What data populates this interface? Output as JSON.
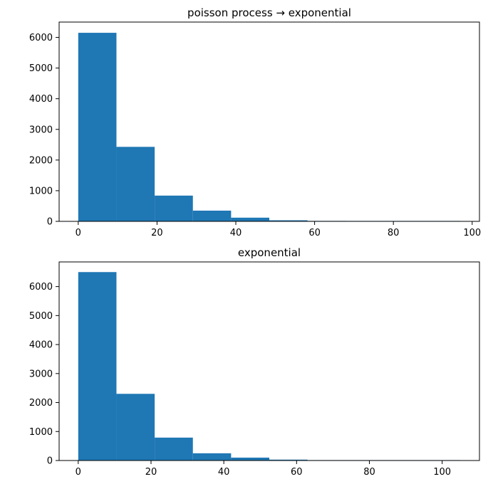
{
  "chart_data": [
    {
      "type": "bar",
      "title": "poisson process → exponential",
      "xlabel": "",
      "ylabel": "",
      "bin_edges": [
        0,
        9.7,
        19.4,
        29.1,
        38.8,
        48.5,
        58.2,
        67.9,
        77.6,
        87.3,
        97
      ],
      "values": [
        6150,
        2430,
        840,
        350,
        120,
        35,
        15,
        5,
        3,
        2
      ],
      "color": "#1f77b4",
      "xlim": [
        -4.85,
        101.85
      ],
      "ylim": [
        0,
        6500
      ],
      "xticks": [
        0,
        20,
        40,
        60,
        80,
        100
      ],
      "yticks": [
        0,
        1000,
        2000,
        3000,
        4000,
        5000,
        6000
      ],
      "grid": false,
      "legend": "none"
    },
    {
      "type": "bar",
      "title": "exponential",
      "xlabel": "",
      "ylabel": "",
      "bin_edges": [
        0,
        10.5,
        21,
        31.5,
        42,
        52.5,
        63,
        73.5,
        84,
        94.5,
        105
      ],
      "values": [
        6500,
        2300,
        790,
        250,
        100,
        30,
        10,
        5,
        3,
        2
      ],
      "color": "#1f77b4",
      "xlim": [
        -5.25,
        110.25
      ],
      "ylim": [
        0,
        6850
      ],
      "xticks": [
        0,
        20,
        40,
        60,
        80,
        100
      ],
      "yticks": [
        0,
        1000,
        2000,
        3000,
        4000,
        5000,
        6000
      ],
      "grid": false,
      "legend": "none"
    }
  ]
}
